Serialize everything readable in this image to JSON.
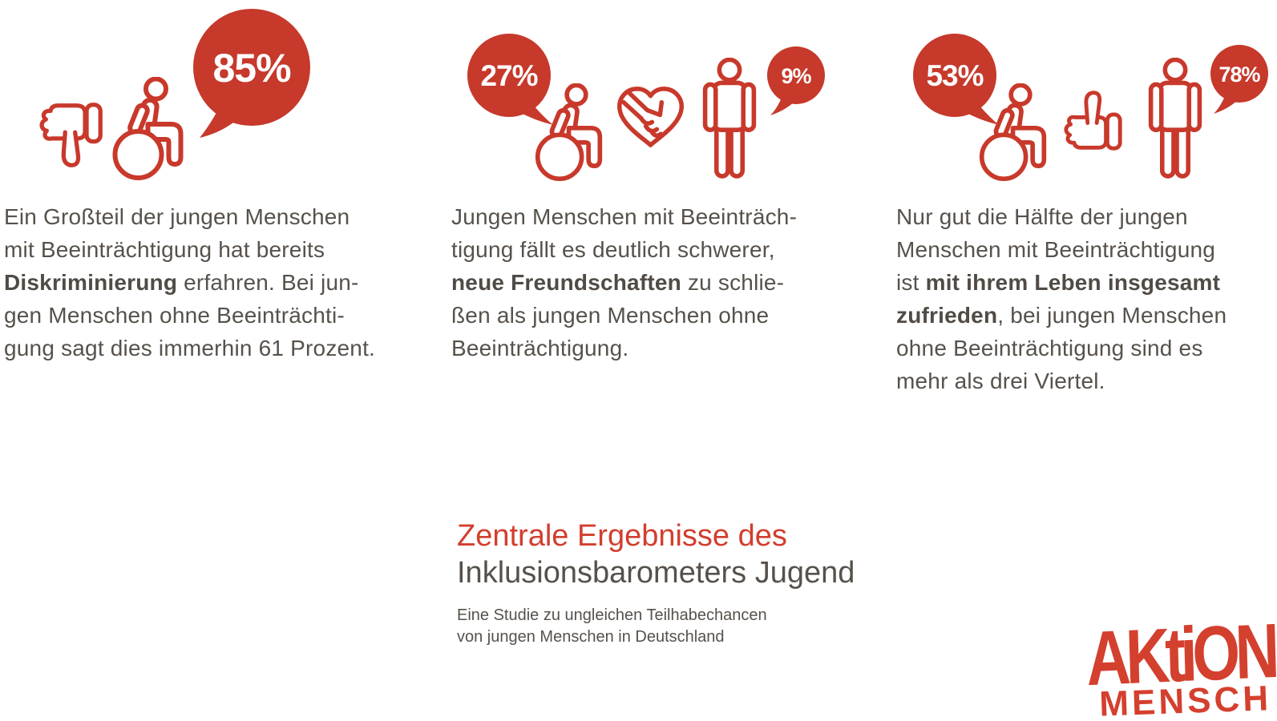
{
  "colors": {
    "brand_red": "#C8392B",
    "bubble_red": "#C6392B",
    "title_red": "#D23E2E",
    "logo_red": "#D4402E",
    "text_dark": "#57514B",
    "background": "#FFFFFF"
  },
  "panels": [
    {
      "id": "discrimination",
      "bubbles": {
        "primary": "85%"
      },
      "icon_names": [
        "thumbs-down",
        "wheelchair-user"
      ],
      "lines": [
        [
          {
            "t": "Ein Großteil der jungen Menschen",
            "b": false
          }
        ],
        [
          {
            "t": "mit Beeinträchtigung hat bereits",
            "b": false
          }
        ],
        [
          {
            "t": "Diskriminierung",
            "b": true
          },
          {
            "t": " erfahren. Bei jun-",
            "b": false
          }
        ],
        [
          {
            "t": "gen Menschen ohne Beeinträchti-",
            "b": false
          }
        ],
        [
          {
            "t": "gung sagt dies immerhin 61 Prozent.",
            "b": false
          }
        ]
      ]
    },
    {
      "id": "friendships",
      "bubbles": {
        "primary": "27%",
        "secondary": "9%"
      },
      "icon_names": [
        "wheelchair-user",
        "handshake-heart",
        "standing-person"
      ],
      "lines": [
        [
          {
            "t": "Jungen Menschen mit Beeinträch-",
            "b": false
          }
        ],
        [
          {
            "t": "tigung fällt es deutlich schwerer,",
            "b": false
          }
        ],
        [
          {
            "t": "neue Freundschaften",
            "b": true
          },
          {
            "t": " zu schlie-",
            "b": false
          }
        ],
        [
          {
            "t": "ßen als jungen Menschen ohne",
            "b": false
          }
        ],
        [
          {
            "t": "Beeinträchtigung.",
            "b": false
          }
        ]
      ]
    },
    {
      "id": "life-satisfaction",
      "bubbles": {
        "primary": "53%",
        "secondary": "78%"
      },
      "icon_names": [
        "wheelchair-user",
        "thumbs-up",
        "standing-person"
      ],
      "lines": [
        [
          {
            "t": "Nur gut die Hälfte der jungen",
            "b": false
          }
        ],
        [
          {
            "t": "Menschen mit Beeinträchtigung",
            "b": false
          }
        ],
        [
          {
            "t": "ist ",
            "b": false
          },
          {
            "t": "mit ihrem Leben insgesamt",
            "b": true
          }
        ],
        [
          {
            "t": "zufrieden",
            "b": true
          },
          {
            "t": ", bei jungen Menschen",
            "b": false
          }
        ],
        [
          {
            "t": "ohne Beeinträchtigung sind es",
            "b": false
          }
        ],
        [
          {
            "t": "mehr als drei Viertel.",
            "b": false
          }
        ]
      ]
    }
  ],
  "footer": {
    "title_line1": "Zentrale Ergebnisse des",
    "title_line2": "Inklusionsbarometers Jugend",
    "subtitle_line1": "Eine Studie zu ungleichen Teilhabechancen",
    "subtitle_line2": "von jungen Menschen in Deutschland"
  },
  "logo": {
    "line1": "AKtiON",
    "line2": "MENSCH"
  }
}
